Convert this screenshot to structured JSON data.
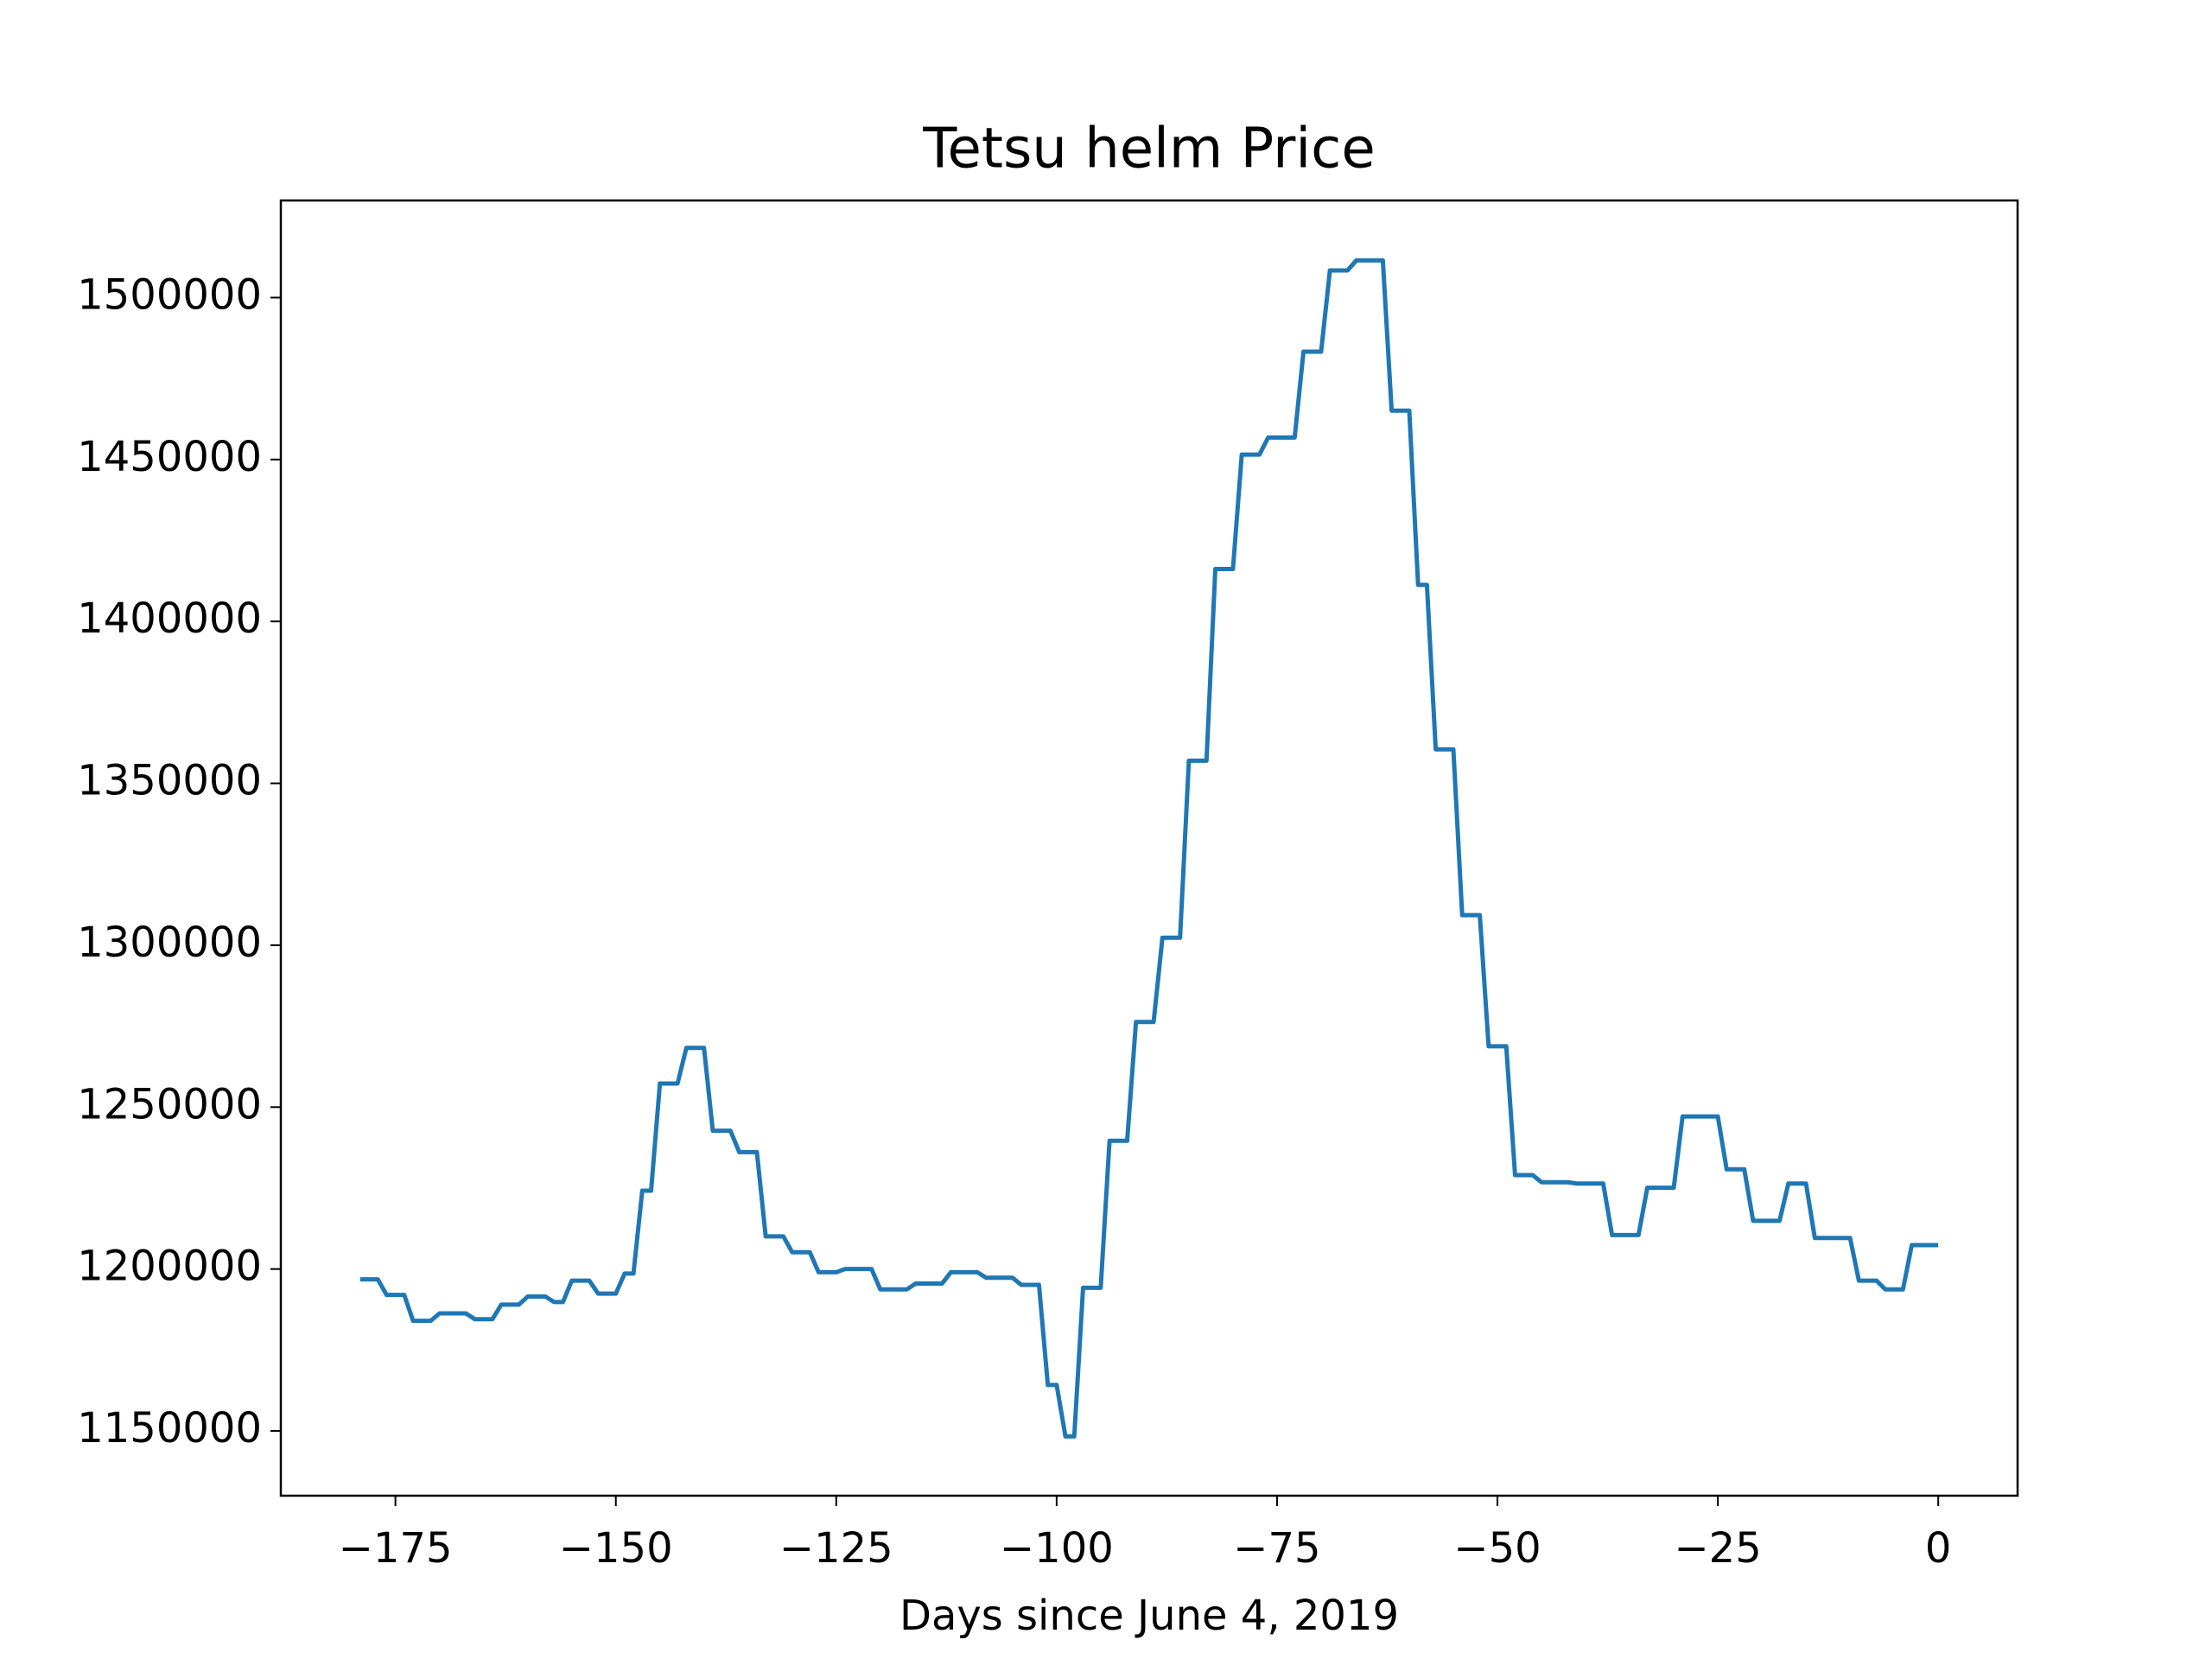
{
  "chart_data": {
    "type": "line",
    "title": "Tetsu helm Price",
    "x_label": "Days since June 4, 2019",
    "x": [
      -179,
      -177,
      -176,
      -174,
      -173,
      -171,
      -170,
      -167,
      -166,
      -164,
      -163,
      -161,
      -160,
      -158,
      -157,
      -156,
      -155,
      -153,
      -152,
      -150,
      -149,
      -148,
      -147,
      -146,
      -145,
      -143,
      -142,
      -140,
      -139,
      -137,
      -136,
      -134,
      -133,
      -131,
      -130,
      -128,
      -127,
      -125,
      -124,
      -121,
      -120,
      -117,
      -116,
      -113,
      -112,
      -109,
      -108,
      -105,
      -104,
      -102,
      -101,
      -100,
      -99,
      -98,
      -97,
      -95,
      -94,
      -92,
      -91,
      -89,
      -88,
      -86,
      -85,
      -83,
      -82,
      -80,
      -79,
      -77,
      -76,
      -73,
      -72,
      -70,
      -69,
      -67,
      -66,
      -63,
      -62,
      -60,
      -59,
      -58,
      -57,
      -55,
      -54,
      -52,
      -51,
      -49,
      -48,
      -46,
      -45,
      -42,
      -41,
      -38,
      -37,
      -34,
      -33,
      -30,
      -29,
      -25,
      -24,
      -22,
      -21,
      -18,
      -17,
      -15,
      -14,
      -10,
      -9,
      -7,
      -6,
      -4,
      -3,
      0
    ],
    "series": [
      {
        "name": "Price",
        "color": "#1f77b4",
        "values": [
          1196800,
          1196800,
          1192000,
          1192000,
          1184000,
          1184000,
          1186300,
          1186300,
          1184500,
          1184500,
          1189000,
          1189000,
          1191500,
          1191500,
          1189800,
          1189800,
          1196400,
          1196400,
          1192400,
          1192400,
          1198600,
          1198600,
          1224200,
          1224200,
          1257300,
          1257300,
          1268300,
          1268300,
          1242700,
          1242700,
          1236100,
          1236100,
          1210100,
          1210100,
          1205200,
          1205200,
          1199000,
          1199000,
          1200000,
          1200000,
          1193700,
          1193700,
          1195500,
          1195500,
          1199000,
          1199000,
          1197300,
          1197300,
          1195100,
          1195100,
          1164200,
          1164200,
          1148300,
          1148300,
          1194200,
          1194200,
          1239600,
          1239600,
          1276300,
          1276300,
          1302300,
          1302300,
          1357000,
          1357000,
          1416200,
          1416200,
          1451500,
          1451500,
          1456800,
          1456800,
          1483300,
          1483300,
          1508400,
          1508400,
          1511500,
          1511500,
          1465100,
          1465100,
          1411300,
          1411300,
          1360500,
          1360500,
          1309300,
          1309300,
          1268800,
          1268800,
          1229000,
          1229000,
          1226800,
          1226800,
          1226400,
          1226400,
          1210500,
          1210500,
          1225100,
          1225100,
          1247100,
          1247100,
          1230800,
          1230800,
          1214900,
          1214900,
          1226400,
          1226400,
          1209600,
          1209600,
          1196400,
          1196400,
          1193700,
          1193700,
          1207400,
          1207400
        ]
      }
    ],
    "xlim": [
      -188,
      9
    ],
    "ylim": [
      1130000,
      1530000
    ],
    "xticks": [
      {
        "value": -175,
        "label": "−175"
      },
      {
        "value": -150,
        "label": "−150"
      },
      {
        "value": -125,
        "label": "−125"
      },
      {
        "value": -100,
        "label": "−100"
      },
      {
        "value": -75,
        "label": "−75"
      },
      {
        "value": -50,
        "label": "−50"
      },
      {
        "value": -25,
        "label": "−25"
      },
      0
    ],
    "yticks": [
      1150000,
      1200000,
      1250000,
      1300000,
      1350000,
      1400000,
      1450000,
      1500000
    ]
  }
}
